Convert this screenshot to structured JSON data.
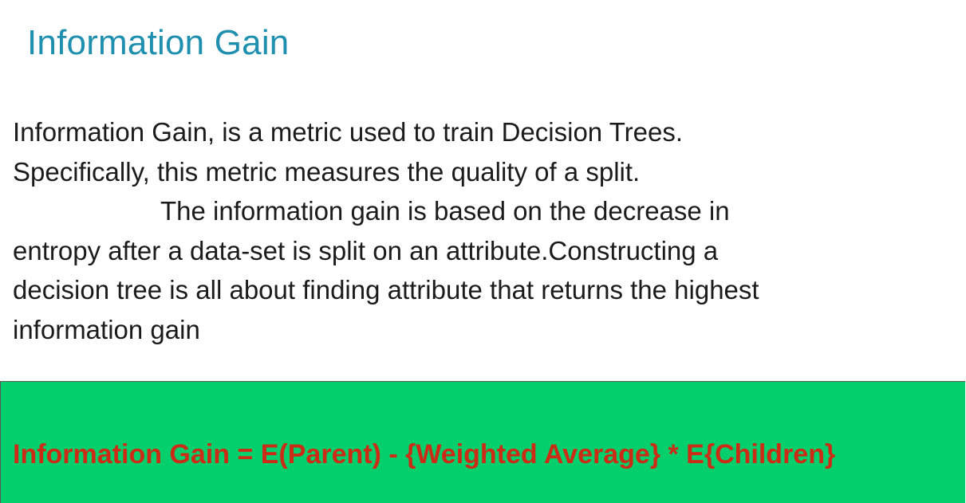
{
  "slide": {
    "title": "Information Gain",
    "body_lines": [
      "Information Gain, is a metric used to train Decision Trees.",
      "Specifically, this metric measures the quality of a split.",
      "The information gain is based on the decrease in",
      "entropy after a data-set is split on an attribute.Constructing a",
      "decision tree is all about finding attribute that returns the highest",
      "information gain"
    ],
    "formula": "Information Gain = E(Parent) - {Weighted Average} * E{Children}",
    "colors": {
      "title": "#1f8fb0",
      "body_text": "#1b1b1b",
      "formula_background": "#03d06c",
      "formula_text": "#cc2b16"
    }
  }
}
